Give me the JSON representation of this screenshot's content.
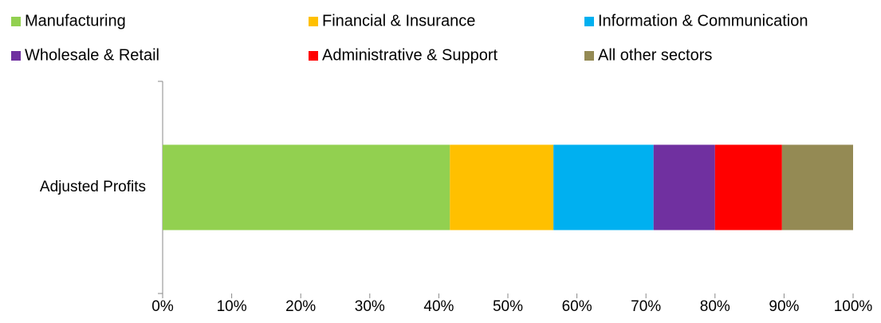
{
  "chart_data": {
    "type": "stacked_bar_horizontal",
    "categories": [
      "Adjusted Profits"
    ],
    "series": [
      {
        "name": "Manufacturing",
        "color": "#92d050",
        "values": [
          41.6
        ]
      },
      {
        "name": "Financial & Insurance",
        "color": "#ffc000",
        "values": [
          15.0
        ]
      },
      {
        "name": "Information & Communication",
        "color": "#00b0f0",
        "values": [
          14.5
        ]
      },
      {
        "name": "Wholesale & Retail",
        "color": "#7030a0",
        "values": [
          8.9
        ]
      },
      {
        "name": "Administrative & Support",
        "color": "#ff0000",
        "values": [
          9.7
        ]
      },
      {
        "name": "All other sectors",
        "color": "#948a54",
        "values": [
          10.3
        ]
      }
    ],
    "xlim": [
      0,
      100
    ],
    "xticks": [
      {
        "value": 0,
        "label": "0%"
      },
      {
        "value": 10,
        "label": "10%"
      },
      {
        "value": 20,
        "label": "20%"
      },
      {
        "value": 30,
        "label": "30%"
      },
      {
        "value": 40,
        "label": "40%"
      },
      {
        "value": 50,
        "label": "50%"
      },
      {
        "value": 60,
        "label": "60%"
      },
      {
        "value": 70,
        "label": "70%"
      },
      {
        "value": 80,
        "label": "80%"
      },
      {
        "value": 90,
        "label": "90%"
      },
      {
        "value": 100,
        "label": "100%"
      }
    ],
    "legend": "top"
  }
}
